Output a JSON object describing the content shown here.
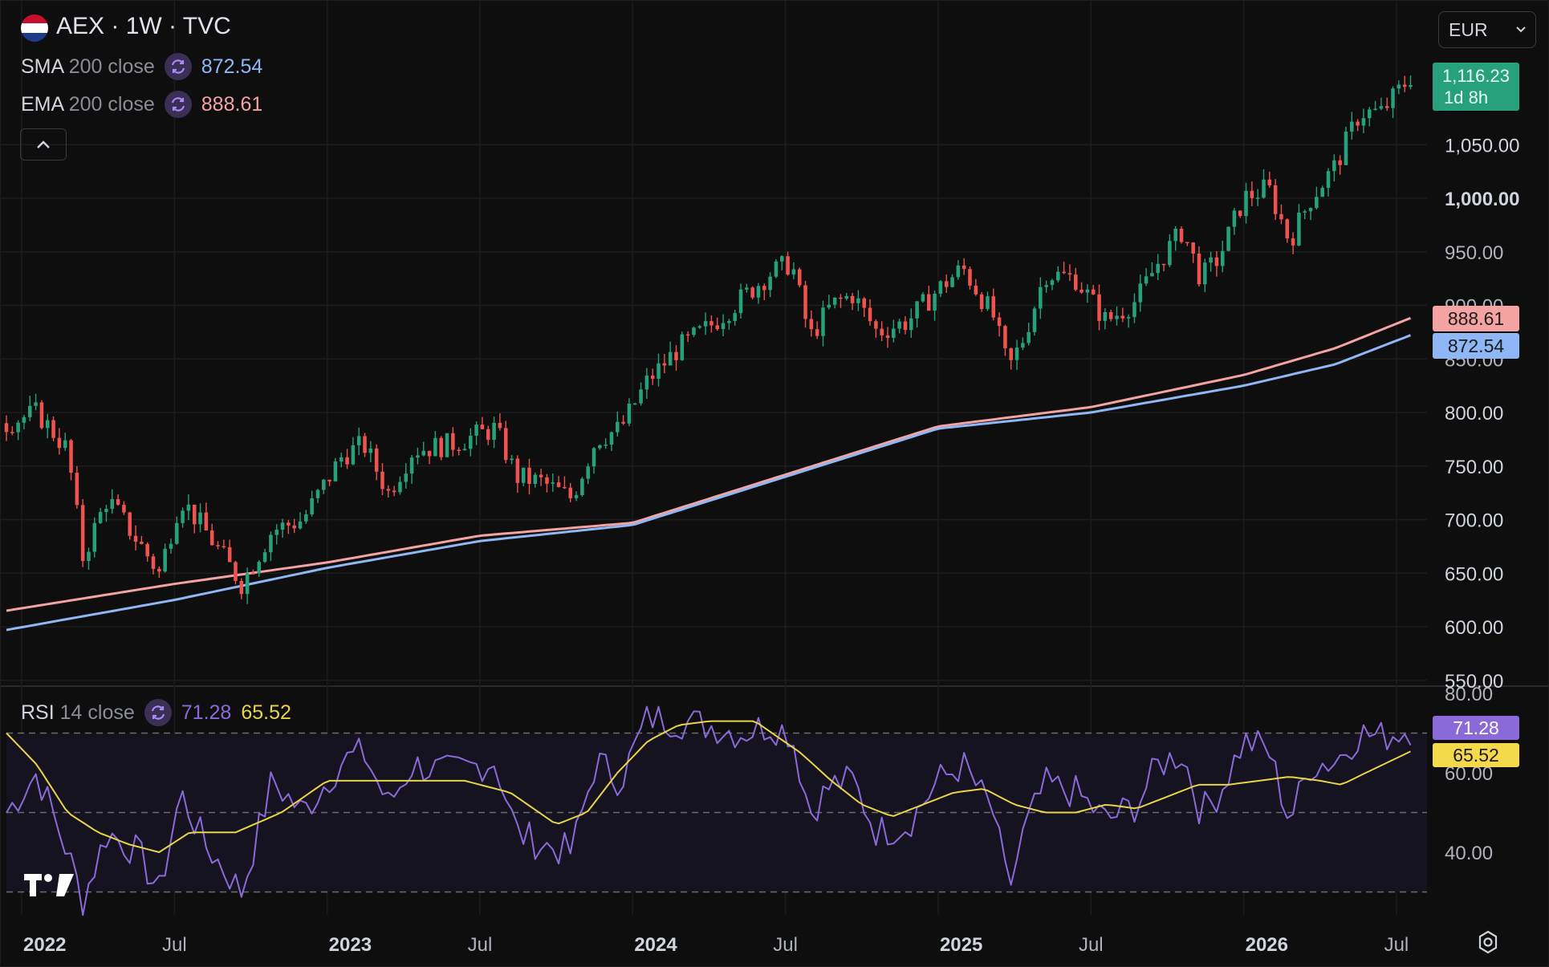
{
  "header": {
    "symbol_title": "AEX · 1W · TVC",
    "currency": "EUR"
  },
  "legend": {
    "sma": {
      "name": "SMA",
      "params": "200 close",
      "value": "872.54",
      "color": "#8fb6f5"
    },
    "ema": {
      "name": "EMA",
      "params": "200 close",
      "value": "888.61",
      "color": "#f4a3a3"
    },
    "rsi": {
      "name": "RSI",
      "params": "14 close",
      "value": "71.28",
      "ma_value": "65.52",
      "color": "#8a6ad8",
      "ma_color": "#e9d348"
    }
  },
  "price_tags": {
    "last": {
      "value": "1,116.23",
      "countdown": "1d 8h",
      "color": "#26a17b"
    },
    "ema": {
      "value": "888.61",
      "color": "#f4a3a3"
    },
    "sma": {
      "value": "872.54",
      "color": "#8fb6f5"
    },
    "rsi": {
      "value": "71.28",
      "color": "#8a6ad8"
    },
    "rsi_ma": {
      "value": "65.52",
      "color": "#f4d94a"
    }
  },
  "chart_data": [
    {
      "type": "candlestick",
      "title": "AEX · 1W · TVC",
      "ylim": [
        550,
        1120
      ],
      "yticks": [
        "1,050.00",
        "1,000.00",
        "950.00",
        "900.00",
        "850.00",
        "800.00",
        "750.00",
        "700.00",
        "650.00",
        "600.00",
        "550.00"
      ],
      "ytick_values": [
        1050,
        1000,
        950,
        900,
        850,
        800,
        750,
        700,
        650,
        600,
        550
      ],
      "xticks": [
        "2022",
        "Jul",
        "2023",
        "Jul",
        "2024",
        "Jul",
        "2025",
        "Jul",
        "2026",
        "Jul"
      ],
      "xtick_years": [
        2022,
        2022.5,
        2023,
        2023.5,
        2024,
        2024.5,
        2025,
        2025.5,
        2026,
        2026.5
      ],
      "x_range": [
        2021.95,
        2026.6
      ],
      "last_value": 1116.23,
      "close_anchors": [
        [
          2021.95,
          790
        ],
        [
          2022.05,
          800
        ],
        [
          2022.15,
          765
        ],
        [
          2022.2,
          665
        ],
        [
          2022.28,
          720
        ],
        [
          2022.38,
          680
        ],
        [
          2022.45,
          650
        ],
        [
          2022.52,
          720
        ],
        [
          2022.6,
          690
        ],
        [
          2022.72,
          640
        ],
        [
          2022.82,
          690
        ],
        [
          2022.92,
          700
        ],
        [
          2023.05,
          760
        ],
        [
          2023.12,
          770
        ],
        [
          2023.2,
          725
        ],
        [
          2023.28,
          765
        ],
        [
          2023.4,
          770
        ],
        [
          2023.55,
          785
        ],
        [
          2023.62,
          740
        ],
        [
          2023.7,
          735
        ],
        [
          2023.8,
          720
        ],
        [
          2023.88,
          775
        ],
        [
          2023.96,
          785
        ],
        [
          2024.05,
          830
        ],
        [
          2024.15,
          860
        ],
        [
          2024.25,
          880
        ],
        [
          2024.35,
          905
        ],
        [
          2024.45,
          930
        ],
        [
          2024.52,
          940
        ],
        [
          2024.58,
          870
        ],
        [
          2024.65,
          900
        ],
        [
          2024.72,
          910
        ],
        [
          2024.8,
          875
        ],
        [
          2024.9,
          885
        ],
        [
          2025.0,
          915
        ],
        [
          2025.08,
          935
        ],
        [
          2025.18,
          890
        ],
        [
          2025.23,
          840
        ],
        [
          2025.28,
          870
        ],
        [
          2025.35,
          930
        ],
        [
          2025.45,
          925
        ],
        [
          2025.55,
          885
        ],
        [
          2025.65,
          905
        ],
        [
          2025.72,
          940
        ],
        [
          2025.8,
          970
        ],
        [
          2025.86,
          925
        ],
        [
          2025.92,
          945
        ],
        [
          2026.0,
          1000
        ],
        [
          2026.08,
          1010
        ],
        [
          2026.15,
          960
        ],
        [
          2026.22,
          1000
        ],
        [
          2026.3,
          1030
        ],
        [
          2026.38,
          1080
        ],
        [
          2026.45,
          1080
        ],
        [
          2026.55,
          1115
        ]
      ],
      "series": [
        {
          "name": "SMA 200 close",
          "color": "#8fb6f5",
          "values": [
            [
              2021.95,
              597
            ],
            [
              2022.5,
              625
            ],
            [
              2023.0,
              655
            ],
            [
              2023.5,
              680
            ],
            [
              2024.0,
              695
            ],
            [
              2024.5,
              740
            ],
            [
              2025.0,
              785
            ],
            [
              2025.5,
              800
            ],
            [
              2026.0,
              825
            ],
            [
              2026.3,
              845
            ],
            [
              2026.55,
              872.54
            ]
          ]
        },
        {
          "name": "EMA 200 close",
          "color": "#f4a3a3",
          "values": [
            [
              2021.95,
              615
            ],
            [
              2022.5,
              640
            ],
            [
              2023.0,
              660
            ],
            [
              2023.5,
              685
            ],
            [
              2024.0,
              697
            ],
            [
              2024.5,
              742
            ],
            [
              2025.0,
              787
            ],
            [
              2025.5,
              805
            ],
            [
              2026.0,
              835
            ],
            [
              2026.3,
              860
            ],
            [
              2026.55,
              888.61
            ]
          ]
        }
      ]
    },
    {
      "type": "line",
      "title": "RSI 14 close",
      "ylim": [
        25,
        80
      ],
      "yticks": [
        "80.00",
        "60.00",
        "40.00"
      ],
      "ytick_values": [
        80,
        60,
        40
      ],
      "band": [
        30,
        70
      ],
      "midline": 50,
      "series": [
        {
          "name": "RSI",
          "color": "#8a6ad8",
          "values": [
            [
              2021.95,
              50
            ],
            [
              2022.05,
              60
            ],
            [
              2022.15,
              40
            ],
            [
              2022.2,
              28
            ],
            [
              2022.28,
              45
            ],
            [
              2022.38,
              40
            ],
            [
              2022.45,
              30
            ],
            [
              2022.52,
              55
            ],
            [
              2022.6,
              42
            ],
            [
              2022.72,
              30
            ],
            [
              2022.82,
              58
            ],
            [
              2022.92,
              50
            ],
            [
              2023.05,
              63
            ],
            [
              2023.12,
              65
            ],
            [
              2023.2,
              52
            ],
            [
              2023.28,
              62
            ],
            [
              2023.4,
              60
            ],
            [
              2023.55,
              63
            ],
            [
              2023.62,
              45
            ],
            [
              2023.7,
              42
            ],
            [
              2023.8,
              40
            ],
            [
              2023.88,
              63
            ],
            [
              2023.96,
              58
            ],
            [
              2024.05,
              74
            ],
            [
              2024.15,
              73
            ],
            [
              2024.25,
              72
            ],
            [
              2024.35,
              70
            ],
            [
              2024.45,
              72
            ],
            [
              2024.52,
              70
            ],
            [
              2024.58,
              50
            ],
            [
              2024.65,
              57
            ],
            [
              2024.72,
              58
            ],
            [
              2024.8,
              45
            ],
            [
              2024.9,
              47
            ],
            [
              2025.0,
              58
            ],
            [
              2025.08,
              62
            ],
            [
              2025.18,
              50
            ],
            [
              2025.23,
              30
            ],
            [
              2025.28,
              45
            ],
            [
              2025.35,
              57
            ],
            [
              2025.45,
              55
            ],
            [
              2025.55,
              48
            ],
            [
              2025.65,
              52
            ],
            [
              2025.72,
              62
            ],
            [
              2025.8,
              65
            ],
            [
              2025.86,
              50
            ],
            [
              2025.92,
              55
            ],
            [
              2026.0,
              68
            ],
            [
              2026.08,
              66
            ],
            [
              2026.15,
              48
            ],
            [
              2026.22,
              62
            ],
            [
              2026.3,
              63
            ],
            [
              2026.38,
              70
            ],
            [
              2026.45,
              69
            ],
            [
              2026.55,
              71.28
            ]
          ]
        },
        {
          "name": "RSI-based MA",
          "color": "#e9d348",
          "values": [
            [
              2021.95,
              70
            ],
            [
              2022.05,
              62
            ],
            [
              2022.15,
              50
            ],
            [
              2022.25,
              45
            ],
            [
              2022.35,
              42
            ],
            [
              2022.45,
              40
            ],
            [
              2022.55,
              45
            ],
            [
              2022.7,
              45
            ],
            [
              2022.85,
              50
            ],
            [
              2023.0,
              58
            ],
            [
              2023.15,
              58
            ],
            [
              2023.3,
              58
            ],
            [
              2023.45,
              58
            ],
            [
              2023.6,
              55
            ],
            [
              2023.75,
              47
            ],
            [
              2023.85,
              50
            ],
            [
              2023.95,
              60
            ],
            [
              2024.05,
              68
            ],
            [
              2024.15,
              72
            ],
            [
              2024.25,
              73
            ],
            [
              2024.4,
              73
            ],
            [
              2024.55,
              65
            ],
            [
              2024.65,
              58
            ],
            [
              2024.75,
              52
            ],
            [
              2024.85,
              49
            ],
            [
              2024.95,
              52
            ],
            [
              2025.05,
              55
            ],
            [
              2025.15,
              56
            ],
            [
              2025.25,
              52
            ],
            [
              2025.35,
              50
            ],
            [
              2025.45,
              50
            ],
            [
              2025.55,
              52
            ],
            [
              2025.65,
              51
            ],
            [
              2025.75,
              54
            ],
            [
              2025.85,
              57
            ],
            [
              2025.95,
              57
            ],
            [
              2026.05,
              58
            ],
            [
              2026.15,
              59
            ],
            [
              2026.25,
              58
            ],
            [
              2026.32,
              57
            ],
            [
              2026.4,
              60
            ],
            [
              2026.55,
              65.52
            ]
          ]
        }
      ]
    }
  ]
}
